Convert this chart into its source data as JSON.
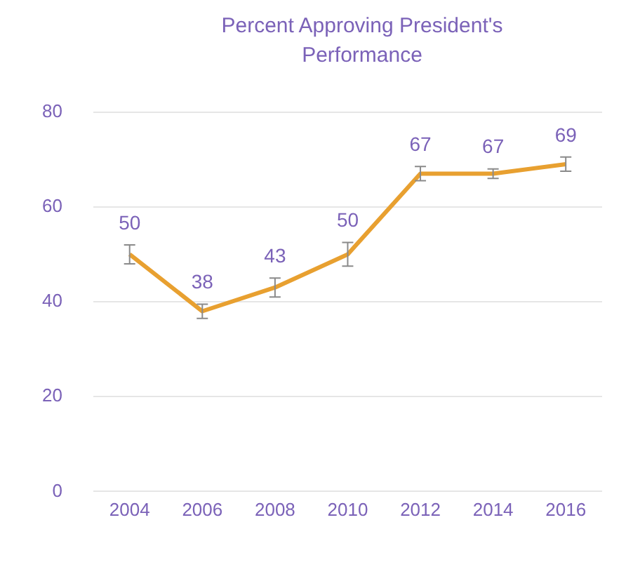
{
  "chart_data": {
    "type": "line",
    "title": "Percent Approving President's Performance",
    "categories": [
      "2004",
      "2006",
      "2008",
      "2010",
      "2012",
      "2014",
      "2016"
    ],
    "series": [
      {
        "color": "#e8a030",
        "values": [
          50,
          38,
          43,
          50,
          67,
          67,
          69
        ],
        "errors": [
          2,
          1.5,
          2,
          2.5,
          1.5,
          1,
          1.5
        ]
      }
    ],
    "data_labels": true,
    "ylim": [
      0,
      80
    ],
    "yticks": [
      0,
      20,
      40,
      60,
      80
    ],
    "grid": "y",
    "legend": false
  }
}
